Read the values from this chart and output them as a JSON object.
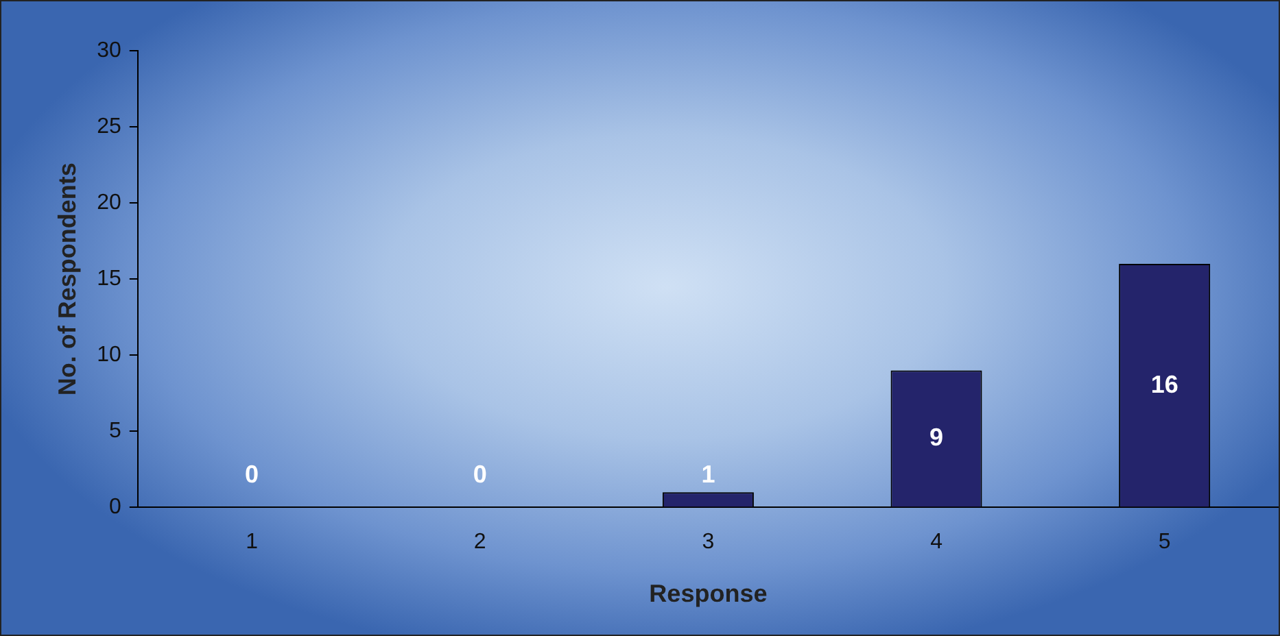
{
  "chart_data": {
    "type": "bar",
    "xlabel": "Response",
    "ylabel": "No. of Respondents",
    "categories": [
      "1",
      "2",
      "3",
      "4",
      "5"
    ],
    "values": [
      0,
      0,
      1,
      9,
      16
    ],
    "color": "#24246b",
    "ylim": [
      0,
      30
    ],
    "yticks": [
      0,
      5,
      10,
      15,
      20,
      25,
      30
    ],
    "grid": false,
    "legend": false,
    "data_labels": true
  }
}
